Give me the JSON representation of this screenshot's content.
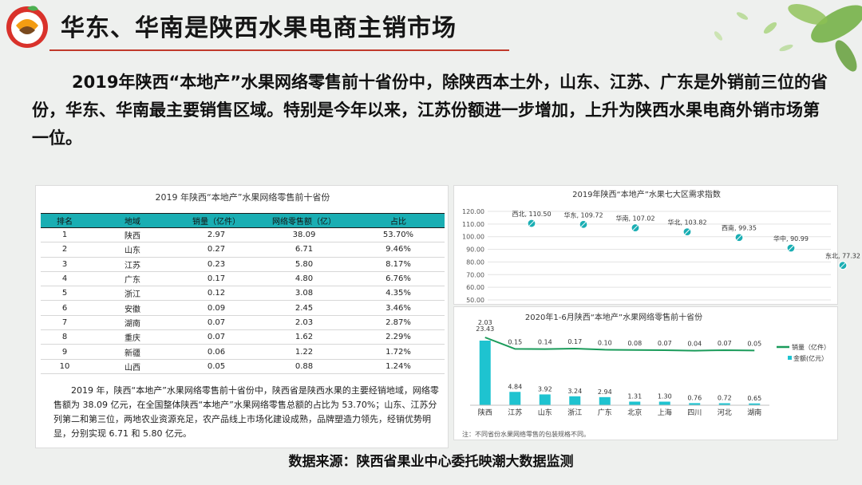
{
  "header": {
    "title": "华东、华南是陕西水果电商主销市场"
  },
  "intro": "2019年陕西“本地产”水果网络零售前十省份中，除陕西本土外，山东、江苏、广东是外销前三位的省份，华东、华南最主要销售区域。特别是今年以来，江苏份额进一步增加，上升为陕西水果电商外销市场第一位。",
  "table": {
    "title": "2019 年陕西“本地产”水果网络零售前十省份",
    "columns": [
      "排名",
      "地域",
      "销量（亿件）",
      "网络零售额（亿）",
      "占比"
    ],
    "rows": [
      [
        "1",
        "陕西",
        "2.97",
        "38.09",
        "53.70%"
      ],
      [
        "2",
        "山东",
        "0.27",
        "6.71",
        "9.46%"
      ],
      [
        "3",
        "江苏",
        "0.23",
        "5.80",
        "8.17%"
      ],
      [
        "4",
        "广东",
        "0.17",
        "4.80",
        "6.76%"
      ],
      [
        "5",
        "浙江",
        "0.12",
        "3.08",
        "4.35%"
      ],
      [
        "6",
        "安徽",
        "0.09",
        "2.45",
        "3.46%"
      ],
      [
        "7",
        "湖南",
        "0.07",
        "2.03",
        "2.87%"
      ],
      [
        "8",
        "重庆",
        "0.07",
        "1.62",
        "2.29%"
      ],
      [
        "9",
        "新疆",
        "0.06",
        "1.22",
        "1.72%"
      ],
      [
        "10",
        "山西",
        "0.05",
        "0.88",
        "1.24%"
      ]
    ],
    "note": "2019 年，陕西“本地产”水果网络零售前十省份中，陕西省是陕西水果的主要经销地域，网络零售额为 38.09 亿元，在全国整体陕西“本地产”水果网络零售总额的占比为 53.70%；山东、江苏分列第二和第三位，两地农业资源充足，农产品线上市场化建设成熟，品牌塑造力领先，经销优势明显，分别实现 6.71 和 5.80 亿元。"
  },
  "chart_data": [
    {
      "type": "scatter",
      "title": "2019年陕西“本地产”水果七大区需求指数",
      "categories": [
        "西北",
        "华东",
        "华南",
        "华北",
        "西南",
        "华中",
        "东北"
      ],
      "values": [
        110.5,
        109.72,
        107.02,
        103.82,
        99.35,
        90.99,
        77.32
      ],
      "data_labels": [
        "西北, 110.50",
        "华东, 109.72",
        "华南, 107.02",
        "华北, 103.82",
        "西南, 99.35",
        "华中, 90.99",
        "东北, 77.32"
      ],
      "yticks": [
        "120.00",
        "110.00",
        "100.00",
        "90.00",
        "80.00",
        "70.00",
        "60.00",
        "50.00"
      ],
      "ylim": [
        50,
        120
      ],
      "grid": true,
      "color": "#1aaeb3"
    },
    {
      "type": "bar",
      "title": "2020年1-6月陕西“本地产”水果网络零售前十省份",
      "categories": [
        "陕西",
        "江苏",
        "山东",
        "浙江",
        "广东",
        "北京",
        "上海",
        "四川",
        "河北",
        "湖南"
      ],
      "series": [
        {
          "name": "销量（亿件）",
          "type": "line",
          "color": "#1a9b5a",
          "values": [
            2.03,
            0.15,
            0.14,
            0.17,
            0.1,
            0.08,
            0.07,
            0.04,
            0.07,
            0.05
          ]
        },
        {
          "name": "金额(亿元）",
          "type": "bar",
          "color": "#1ec3d0",
          "values": [
            23.43,
            4.84,
            3.92,
            3.24,
            2.94,
            1.31,
            1.3,
            0.76,
            0.72,
            0.65
          ]
        }
      ],
      "bar_labels": [
        "23.43",
        "4.84",
        "3.92",
        "3.24",
        "2.94",
        "1.31",
        "1.30",
        "0.76",
        "0.72",
        "0.65"
      ],
      "line_labels": [
        "2.03",
        "0.15",
        "0.14",
        "0.17",
        "0.10",
        "0.08",
        "0.07",
        "0.04",
        "0.07",
        "0.05"
      ],
      "legend": "right",
      "note": "注：不同省份水果网络零售的包装规格不同。"
    }
  ],
  "footer": "数据来源：陕西省果业中心委托映潮大数据监测",
  "colors": {
    "accent": "#1aaeb3",
    "rule": "#c0392b"
  }
}
